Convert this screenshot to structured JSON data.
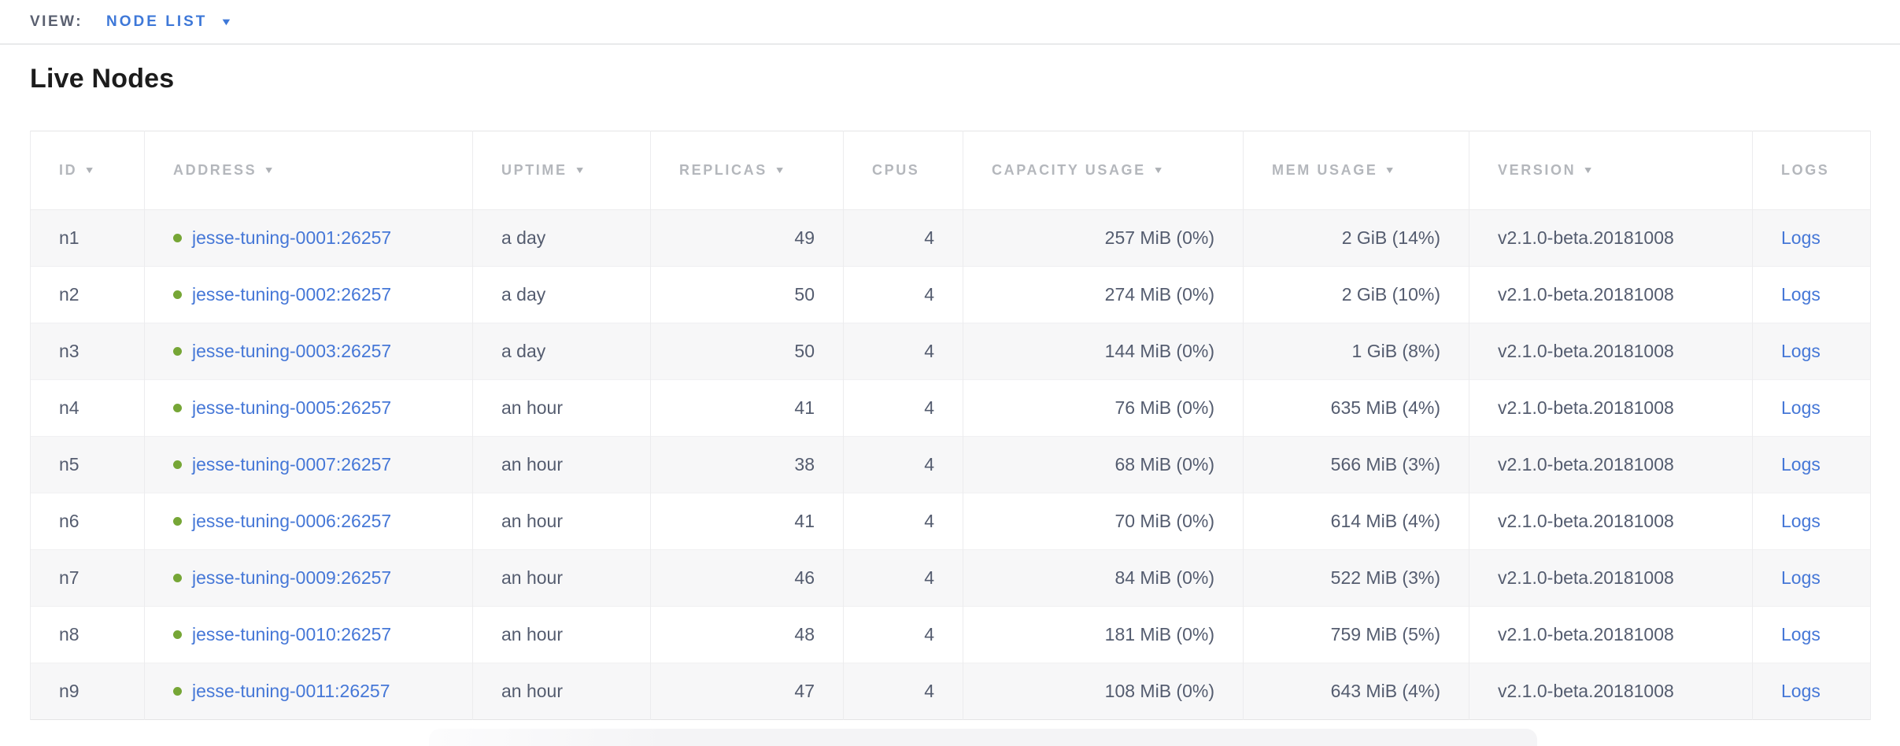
{
  "view_bar": {
    "label": "VIEW:",
    "selected": "NODE LIST"
  },
  "page": {
    "title": "Live Nodes"
  },
  "table": {
    "columns": [
      {
        "key": "id",
        "label": "ID",
        "sortable": true,
        "align": "left"
      },
      {
        "key": "address",
        "label": "ADDRESS",
        "sortable": true,
        "align": "left"
      },
      {
        "key": "uptime",
        "label": "UPTIME",
        "sortable": true,
        "align": "left"
      },
      {
        "key": "replicas",
        "label": "REPLICAS",
        "sortable": true,
        "align": "right"
      },
      {
        "key": "cpus",
        "label": "CPUS",
        "sortable": false,
        "align": "right"
      },
      {
        "key": "capacity",
        "label": "CAPACITY USAGE",
        "sortable": true,
        "align": "right"
      },
      {
        "key": "mem",
        "label": "MEM USAGE",
        "sortable": true,
        "align": "right"
      },
      {
        "key": "version",
        "label": "VERSION",
        "sortable": true,
        "align": "left"
      },
      {
        "key": "logs",
        "label": "LOGS",
        "sortable": false,
        "align": "left"
      }
    ],
    "rows": [
      {
        "id": "n1",
        "address": "jesse-tuning-0001:26257",
        "status": "healthy",
        "uptime": "a day",
        "replicas": "49",
        "cpus": "4",
        "capacity": "257 MiB (0%)",
        "mem": "2 GiB (14%)",
        "version": "v2.1.0-beta.20181008",
        "logs": "Logs"
      },
      {
        "id": "n2",
        "address": "jesse-tuning-0002:26257",
        "status": "healthy",
        "uptime": "a day",
        "replicas": "50",
        "cpus": "4",
        "capacity": "274 MiB (0%)",
        "mem": "2 GiB (10%)",
        "version": "v2.1.0-beta.20181008",
        "logs": "Logs"
      },
      {
        "id": "n3",
        "address": "jesse-tuning-0003:26257",
        "status": "healthy",
        "uptime": "a day",
        "replicas": "50",
        "cpus": "4",
        "capacity": "144 MiB (0%)",
        "mem": "1 GiB (8%)",
        "version": "v2.1.0-beta.20181008",
        "logs": "Logs"
      },
      {
        "id": "n4",
        "address": "jesse-tuning-0005:26257",
        "status": "healthy",
        "uptime": "an hour",
        "replicas": "41",
        "cpus": "4",
        "capacity": "76 MiB (0%)",
        "mem": "635 MiB (4%)",
        "version": "v2.1.0-beta.20181008",
        "logs": "Logs"
      },
      {
        "id": "n5",
        "address": "jesse-tuning-0007:26257",
        "status": "healthy",
        "uptime": "an hour",
        "replicas": "38",
        "cpus": "4",
        "capacity": "68 MiB (0%)",
        "mem": "566 MiB (3%)",
        "version": "v2.1.0-beta.20181008",
        "logs": "Logs"
      },
      {
        "id": "n6",
        "address": "jesse-tuning-0006:26257",
        "status": "healthy",
        "uptime": "an hour",
        "replicas": "41",
        "cpus": "4",
        "capacity": "70 MiB (0%)",
        "mem": "614 MiB (4%)",
        "version": "v2.1.0-beta.20181008",
        "logs": "Logs"
      },
      {
        "id": "n7",
        "address": "jesse-tuning-0009:26257",
        "status": "healthy",
        "uptime": "an hour",
        "replicas": "46",
        "cpus": "4",
        "capacity": "84 MiB (0%)",
        "mem": "522 MiB (3%)",
        "version": "v2.1.0-beta.20181008",
        "logs": "Logs"
      },
      {
        "id": "n8",
        "address": "jesse-tuning-0010:26257",
        "status": "healthy",
        "uptime": "an hour",
        "replicas": "48",
        "cpus": "4",
        "capacity": "181 MiB (0%)",
        "mem": "759 MiB (5%)",
        "version": "v2.1.0-beta.20181008",
        "logs": "Logs"
      },
      {
        "id": "n9",
        "address": "jesse-tuning-0011:26257",
        "status": "healthy",
        "uptime": "an hour",
        "replicas": "47",
        "cpus": "4",
        "capacity": "108 MiB (0%)",
        "mem": "643 MiB (4%)",
        "version": "v2.1.0-beta.20181008",
        "logs": "Logs"
      }
    ]
  },
  "icons": {
    "sort_arrow": "▼",
    "dropdown_caret": "▼"
  },
  "colors": {
    "accent_blue": "#3e78d8",
    "link_blue": "#4577d7",
    "healthy_green": "#76a636",
    "header_text": "#b4b7bc",
    "cell_text": "#545c6f",
    "row_stripe": "#f7f7f8"
  }
}
